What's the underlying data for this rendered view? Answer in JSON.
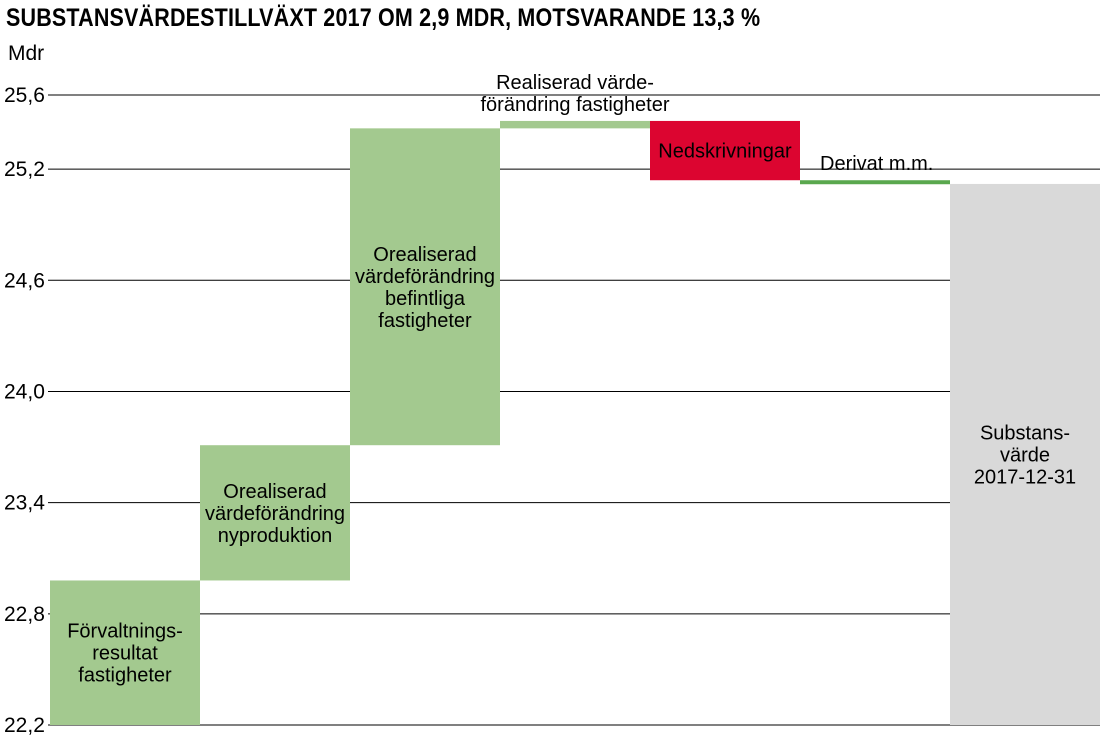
{
  "chart_data": {
    "type": "bar",
    "subtype": "waterfall",
    "title": "SUBSTANSVÄRDESTILLVÄXT 2017 OM 2,9 MDR, MOTSVARANDE 13,3 %",
    "ylabel": "Mdr",
    "ylim": [
      22.2,
      25.6
    ],
    "yticks": [
      22.2,
      22.8,
      23.4,
      24.0,
      24.6,
      25.2,
      25.6
    ],
    "ytick_labels": [
      "22,2",
      "22,8",
      "23,4",
      "24,0",
      "24,6",
      "25,2",
      "25,6"
    ],
    "grid": true,
    "bars": [
      {
        "label_lines": [
          "Förvaltnings-",
          "resultat",
          "fastigheter"
        ],
        "start": 22.2,
        "end": 22.98,
        "color": "#a3c98f",
        "label_pos": "inside"
      },
      {
        "label_lines": [
          "Orealiserad",
          "värdeförändring",
          "nyproduktion"
        ],
        "start": 22.98,
        "end": 23.71,
        "color": "#a3c98f",
        "label_pos": "inside"
      },
      {
        "label_lines": [
          "Orealiserad",
          "värdeförändring",
          "befintliga",
          "fastigheter"
        ],
        "start": 23.71,
        "end": 25.42,
        "color": "#a3c98f",
        "label_pos": "inside"
      },
      {
        "label_lines": [
          "Realiserad värde-",
          "förändring fastigheter"
        ],
        "start": 25.42,
        "end": 25.46,
        "color": "#a3c98f",
        "label_pos": "above"
      },
      {
        "label_lines": [
          "Nedskrivningar"
        ],
        "start": 25.46,
        "end": 25.14,
        "color": "#dc0530",
        "label_pos": "inside"
      },
      {
        "label_lines": [
          "Derivat m.m."
        ],
        "start": 25.14,
        "end": 25.12,
        "color": "#5aa84e",
        "label_pos": "above"
      },
      {
        "label_lines": [
          "Substans-",
          "värde",
          "2017-12-31"
        ],
        "start": 22.2,
        "end": 25.12,
        "color": "#d9d9d9",
        "label_pos": "inside"
      }
    ]
  }
}
